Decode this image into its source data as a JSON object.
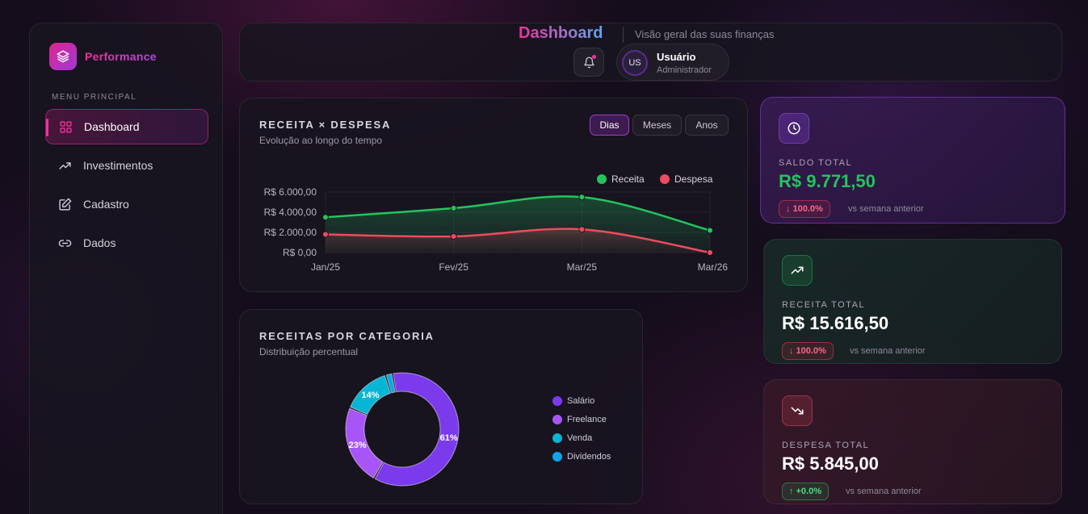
{
  "sidebar": {
    "brand": "Performance",
    "menu_heading": "MENU PRINCIPAL",
    "items": [
      {
        "label": "Dashboard",
        "icon": "grid-icon"
      },
      {
        "label": "Investimentos",
        "icon": "trending-up-icon"
      },
      {
        "label": "Cadastro",
        "icon": "edit-icon"
      },
      {
        "label": "Dados",
        "icon": "link-icon"
      }
    ]
  },
  "header": {
    "title": "Dashboard",
    "subtitle": "Visão geral das suas finanças",
    "user": {
      "initials": "US",
      "name": "Usuário",
      "role": "Administrador"
    }
  },
  "revenue_chart": {
    "title": "RECEITA × DESPESA",
    "subtitle": "Evolução ao longo do tempo",
    "ranges": [
      "Dias",
      "Meses",
      "Anos"
    ],
    "active_range": "Dias"
  },
  "category_chart": {
    "title": "RECEITAS POR CATEGORIA",
    "subtitle": "Distribuição percentual"
  },
  "stats": {
    "saldo": {
      "label": "SALDO TOTAL",
      "value": "R$ 9.771,50",
      "change": "100.0%",
      "compare": "vs semana anterior"
    },
    "receita": {
      "label": "RECEITA TOTAL",
      "value": "R$ 15.616,50",
      "change": "100.0%",
      "compare": "vs semana anterior"
    },
    "despesa": {
      "label": "DESPESA TOTAL",
      "value": "R$ 5.845,00",
      "change": "+0.0%",
      "compare": "vs semana anterior"
    }
  },
  "colors": {
    "accent_pink": "#f0329a",
    "receita_line": "#22c55e",
    "despesa_line": "#ef4b5f",
    "salario": "#7c3aed",
    "freelance": "#a855f7",
    "venda": "#06b6d4",
    "dividendos": "#0ea5e9"
  },
  "chart_data": [
    {
      "type": "line",
      "x": [
        "Jan/25",
        "Fev/25",
        "Mar/25",
        "Mar/26"
      ],
      "series": [
        {
          "name": "Receita",
          "values": [
            3500,
            4400,
            5500,
            2200
          ]
        },
        {
          "name": "Despesa",
          "values": [
            1800,
            1600,
            2300,
            0
          ]
        }
      ],
      "yticks": [
        "R$ 6.000,00",
        "R$ 4.000,00",
        "R$ 2.000,00",
        "R$ 0,00"
      ],
      "ylim": [
        0,
        6000
      ],
      "legend": "top-right",
      "grid": true
    },
    {
      "type": "pie",
      "categories": [
        "Salário",
        "Freelance",
        "Venda",
        "Dividendos"
      ],
      "values": [
        61,
        23,
        14,
        2
      ],
      "labels": [
        "61%",
        "23%",
        "14%",
        ""
      ],
      "legend": "right"
    }
  ]
}
